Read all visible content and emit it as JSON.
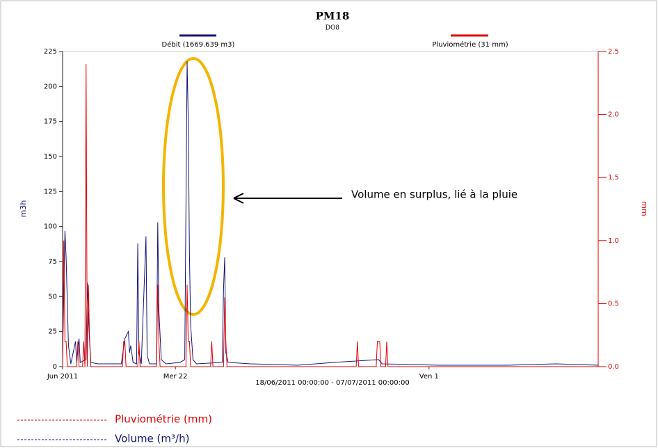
{
  "chart_data": {
    "type": "line",
    "title": "PM18",
    "subtitle": "DO8",
    "x_label": "18/06/2011 00:00:00 - 07/07/2011 00:00:00",
    "y_label": "m3h",
    "y2_label": "mm",
    "xlim": [
      "2011-06-18T00:00",
      "2011-07-07T00:00"
    ],
    "xticks": [
      {
        "value": "2011-06-18T00:00",
        "label": "Jun 2011"
      },
      {
        "value": "2011-06-22T00:00",
        "label": "Mer 22"
      },
      {
        "value": "2011-07-01T00:00",
        "label": "Ven 1"
      }
    ],
    "ylim": [
      0,
      225
    ],
    "yticks": [
      0,
      25,
      50,
      75,
      100,
      125,
      150,
      175,
      200,
      225
    ],
    "y2lim": [
      0,
      2.5
    ],
    "y2ticks": [
      {
        "value": 0,
        "label": "0.0"
      },
      {
        "value": 0.5,
        "label": "0.5"
      },
      {
        "value": 1,
        "label": "1.0"
      },
      {
        "value": 1.5,
        "label": "1.5"
      },
      {
        "value": 2,
        "label": "2.0"
      },
      {
        "value": 2.5,
        "label": "2.5"
      }
    ],
    "series": [
      {
        "name": "Débit (1669.639 m3)",
        "color": "#141478",
        "x": [
          "2011-06-18T00:00",
          "2011-06-18T02:00",
          "2011-06-18T03:00",
          "2011-06-18T05:00",
          "2011-06-18T07:00",
          "2011-06-18T11:00",
          "2011-06-18T12:00",
          "2011-06-18T14:00",
          "2011-06-18T15:00",
          "2011-06-18T20:00",
          "2011-06-18T21:00",
          "2011-06-18T22:00",
          "2011-06-19T00:00",
          "2011-06-19T06:00",
          "2011-06-20T02:00",
          "2011-06-20T05:00",
          "2011-06-20T08:00",
          "2011-06-20T09:00",
          "2011-06-20T10:00",
          "2011-06-20T12:00",
          "2011-06-20T15:00",
          "2011-06-20T16:00",
          "2011-06-20T17:00",
          "2011-06-20T19:00",
          "2011-06-20T23:00",
          "2011-06-21T00:00",
          "2011-06-21T02:00",
          "2011-06-21T08:00",
          "2011-06-21T09:00",
          "2011-06-21T10:00",
          "2011-06-21T12:00",
          "2011-06-21T16:00",
          "2011-06-22T04:00",
          "2011-06-22T08:00",
          "2011-06-22T10:00",
          "2011-06-22T11:00",
          "2011-06-22T12:00",
          "2011-06-22T13:00",
          "2011-06-22T15:00",
          "2011-06-22T18:00",
          "2011-06-23T16:00",
          "2011-06-23T17:00",
          "2011-06-23T18:00",
          "2011-06-23T19:00",
          "2011-06-23T21:00",
          "2011-06-24T16:00",
          "2011-06-26T08:00",
          "2011-06-27T15:00",
          "2011-06-29T05:00",
          "2011-06-29T08:00",
          "2011-07-01T08:00",
          "2011-07-03T20:00",
          "2011-07-05T12:00",
          "2011-07-07T00:00"
        ],
        "values": [
          5,
          97,
          78,
          15,
          2,
          18,
          3,
          20,
          3,
          5,
          60,
          35,
          3,
          2,
          2,
          20,
          25,
          10,
          15,
          3,
          2,
          88,
          10,
          2,
          93,
          8,
          2,
          2,
          103,
          40,
          5,
          2,
          3,
          5,
          218,
          175,
          80,
          30,
          5,
          2,
          3,
          55,
          78,
          10,
          3,
          2,
          1,
          3,
          5,
          2,
          1,
          1,
          2,
          1
        ]
      },
      {
        "name": "Pluviométrie (31 mm)",
        "color": "#e00000",
        "axis": "y2",
        "x": [
          "2011-06-18T00:00",
          "2011-06-18T01:00",
          "2011-06-18T02:00",
          "2011-06-18T03:00",
          "2011-06-18T04:00",
          "2011-06-18T12:00",
          "2011-06-18T13:00",
          "2011-06-18T14:00",
          "2011-06-18T17:00",
          "2011-06-18T18:00",
          "2011-06-18T19:00",
          "2011-06-18T20:00",
          "2011-06-18T21:00",
          "2011-06-18T22:00",
          "2011-06-18T23:00",
          "2011-06-19T00:00",
          "2011-06-20T03:00",
          "2011-06-20T04:00",
          "2011-06-20T05:00",
          "2011-06-20T06:00",
          "2011-06-20T16:00",
          "2011-06-20T17:00",
          "2011-06-20T18:00",
          "2011-06-21T08:00",
          "2011-06-21T09:00",
          "2011-06-21T10:00",
          "2011-06-21T11:00",
          "2011-06-22T09:00",
          "2011-06-22T10:00",
          "2011-06-22T11:00",
          "2011-06-22T12:00",
          "2011-06-22T13:00",
          "2011-06-23T06:00",
          "2011-06-23T07:00",
          "2011-06-23T08:00",
          "2011-06-23T17:00",
          "2011-06-23T18:00",
          "2011-06-23T19:00",
          "2011-06-23T20:00",
          "2011-06-28T10:00",
          "2011-06-28T11:00",
          "2011-06-28T12:00",
          "2011-06-29T03:00",
          "2011-06-29T04:00",
          "2011-06-29T05:00",
          "2011-06-29T06:00",
          "2011-06-29T07:00",
          "2011-06-29T11:00",
          "2011-06-29T12:00",
          "2011-06-29T13:00",
          "2011-07-07T00:00"
        ],
        "values": [
          0,
          1.0,
          0.2,
          0.2,
          0,
          0,
          0.2,
          0,
          0,
          0.2,
          0,
          2.4,
          0,
          0.65,
          0.2,
          0,
          0,
          0.2,
          0.2,
          0,
          0,
          0.2,
          0,
          0,
          0.65,
          0.2,
          0,
          0,
          0.65,
          0.2,
          0.2,
          0,
          0,
          0.2,
          0,
          0,
          0.55,
          0.2,
          0,
          0,
          0.2,
          0,
          0,
          0.2,
          0.2,
          0.2,
          0,
          0,
          0.2,
          0,
          0
        ]
      }
    ],
    "annotation": "Volume en surplus, lié à la pluie",
    "legend_notes": [
      "Pluviométrie (mm)",
      "Volume (m³/h)"
    ]
  }
}
